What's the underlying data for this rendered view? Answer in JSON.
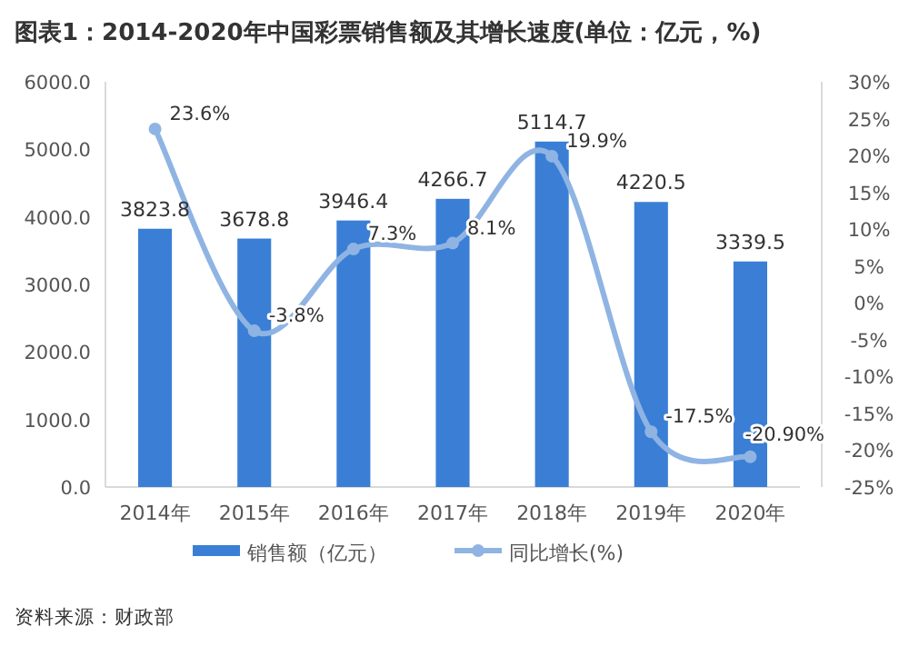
{
  "chart_data": {
    "type": "bar",
    "title": "图表1：2014-2020年中国彩票销售额及其增长速度(单位：亿元，%)",
    "categories": [
      "2014年",
      "2015年",
      "2016年",
      "2017年",
      "2018年",
      "2019年",
      "2020年"
    ],
    "series": [
      {
        "name": "销售额（亿元）",
        "color": "#3a7fd5",
        "values": [
          3823.8,
          3678.8,
          3946.4,
          4266.7,
          5114.7,
          4220.5,
          3339.5
        ],
        "value_labels": [
          "3823.8",
          "3678.8",
          "3946.4",
          "4266.7",
          "5114.7",
          "4220.5",
          "3339.5"
        ]
      },
      {
        "name": "同比增长(%)",
        "type": "line",
        "axis": "y2",
        "marker": "circle",
        "color": "#8fb4e3",
        "values": [
          23.6,
          -3.8,
          7.3,
          8.1,
          19.9,
          -17.5,
          -20.9
        ],
        "value_labels": [
          "23.6%",
          "-3.8%",
          "7.3%",
          "8.1%",
          "19.9%",
          "-17.5%",
          "-20.90%"
        ]
      }
    ],
    "ylim": [
      0,
      6000
    ],
    "yticks": [
      {
        "value": 0,
        "label": "0.0"
      },
      {
        "value": 1000,
        "label": "1000.0"
      },
      {
        "value": 2000,
        "label": "2000.0"
      },
      {
        "value": 3000,
        "label": "3000.0"
      },
      {
        "value": 4000,
        "label": "4000.0"
      },
      {
        "value": 5000,
        "label": "5000.0"
      },
      {
        "value": 6000,
        "label": "6000.0"
      }
    ],
    "y2lim": [
      -25,
      30
    ],
    "y2ticks": [
      {
        "value": -25,
        "label": "-25%"
      },
      {
        "value": -20,
        "label": "-20%"
      },
      {
        "value": -15,
        "label": "-15%"
      },
      {
        "value": -10,
        "label": "-10%"
      },
      {
        "value": -5,
        "label": "-5%"
      },
      {
        "value": 0,
        "label": "0%"
      },
      {
        "value": 5,
        "label": "5%"
      },
      {
        "value": 10,
        "label": "10%"
      },
      {
        "value": 15,
        "label": "15%"
      },
      {
        "value": 20,
        "label": "20%"
      },
      {
        "value": 25,
        "label": "25%"
      },
      {
        "value": 30,
        "label": "30%"
      }
    ],
    "legend": "bottom",
    "annotations": [
      "资料来源：财政部"
    ]
  }
}
